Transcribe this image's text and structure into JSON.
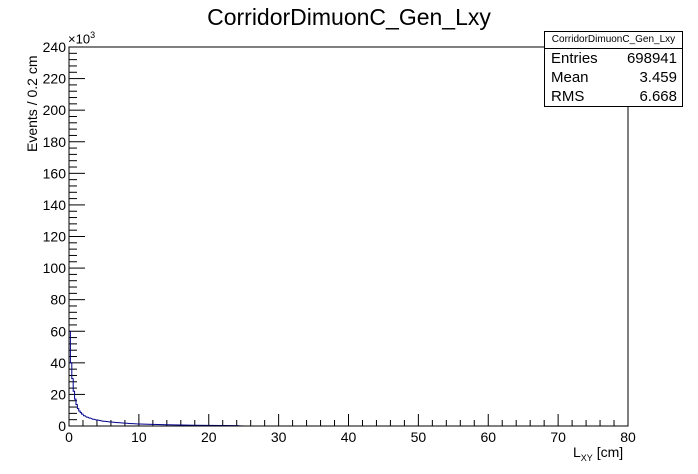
{
  "chart_data": {
    "type": "histogram",
    "title": "CorridorDimuonC_Gen_Lxy",
    "xlabel_main": "L",
    "xlabel_sub": "XY",
    "xlabel_unit": " [cm]",
    "ylabel": "Events / 0.2 cm",
    "y_multiplier": "×10",
    "y_multiplier_exp": "3",
    "xlim": [
      0,
      80
    ],
    "ylim": [
      0,
      240
    ],
    "x_ticks": [
      0,
      10,
      20,
      30,
      40,
      50,
      60,
      70,
      80
    ],
    "y_ticks": [
      0,
      20,
      40,
      60,
      80,
      100,
      120,
      140,
      160,
      180,
      200,
      220,
      240
    ],
    "bin_width": 0.2,
    "line_color": "#00008b",
    "x": [
      0.1,
      0.3,
      0.5,
      0.7,
      0.9,
      1.1,
      1.3,
      1.5,
      1.7,
      1.9,
      2.2,
      2.6,
      3.0,
      3.5,
      4.0,
      5.0,
      6.0,
      7.0,
      8.0,
      9.0,
      10.0,
      12.0,
      14.0,
      16.0,
      18.0,
      20.0,
      22.0,
      24.0,
      24.6,
      25.0,
      30.0
    ],
    "y": [
      60,
      40,
      30,
      22,
      17,
      13.5,
      11,
      9.5,
      8.5,
      7.5,
      6.5,
      5.6,
      5.0,
      4.3,
      3.8,
      3.0,
      2.5,
      2.1,
      1.8,
      1.5,
      1.3,
      1.0,
      0.8,
      0.65,
      0.5,
      0.4,
      0.3,
      0.25,
      0.1,
      0,
      0
    ]
  },
  "stats": {
    "header": "CorridorDimuonC_Gen_Lxy",
    "rows": [
      {
        "label": "Entries",
        "value": "698941"
      },
      {
        "label": "Mean",
        "value": "3.459"
      },
      {
        "label": "RMS",
        "value": "6.668"
      }
    ]
  }
}
